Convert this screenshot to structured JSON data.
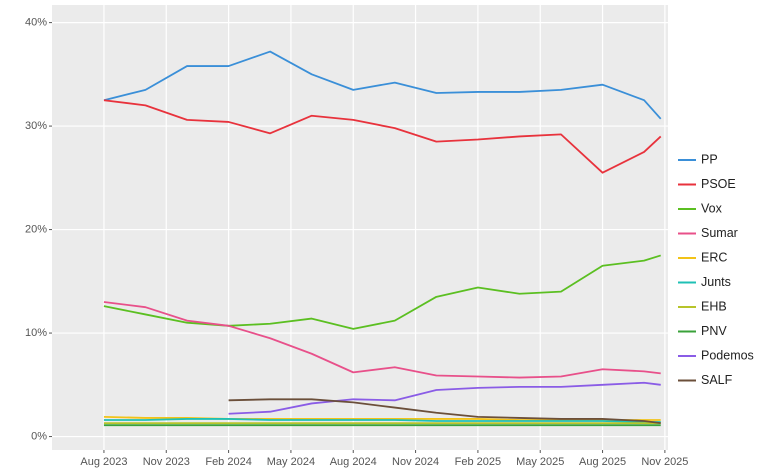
{
  "chart_data": {
    "type": "line",
    "x": [
      0,
      2,
      4,
      6,
      8,
      10,
      12,
      14,
      16,
      18,
      20,
      22,
      24,
      26,
      26.8
    ],
    "xlim": [
      -2.5,
      27.15
    ],
    "xticks": [
      {
        "value": 0,
        "label": "Aug 2023"
      },
      {
        "value": 3,
        "label": "Nov 2023"
      },
      {
        "value": 6,
        "label": "Feb 2024"
      },
      {
        "value": 9,
        "label": "May 2024"
      },
      {
        "value": 12,
        "label": "Aug 2024"
      },
      {
        "value": 15,
        "label": "Nov 2024"
      },
      {
        "value": 18,
        "label": "Feb 2025"
      },
      {
        "value": 21,
        "label": "May 2025"
      },
      {
        "value": 24,
        "label": "Aug 2025"
      },
      {
        "value": 27,
        "label": "Nov 2025"
      }
    ],
    "ylim": [
      -1.3,
      41.7
    ],
    "yticks": [
      {
        "value": 0,
        "label": "0%"
      },
      {
        "value": 10,
        "label": "10%"
      },
      {
        "value": 20,
        "label": "20%"
      },
      {
        "value": 30,
        "label": "30%"
      },
      {
        "value": 40,
        "label": "40%"
      }
    ],
    "grid": true,
    "legend": "right",
    "series": [
      {
        "name": "PP",
        "color": "#3a8fd8",
        "values": [
          32.5,
          33.5,
          35.8,
          35.8,
          37.2,
          35,
          33.5,
          34.2,
          33.2,
          33.3,
          33.3,
          33.5,
          34,
          32.5,
          30.7
        ]
      },
      {
        "name": "PSOE",
        "color": "#e8323c",
        "values": [
          32.5,
          32,
          30.6,
          30.4,
          29.3,
          31,
          30.6,
          29.8,
          28.5,
          28.7,
          29,
          29.2,
          25.5,
          27.5,
          29
        ]
      },
      {
        "name": "Vox",
        "color": "#5bbf21",
        "values": [
          12.6,
          11.8,
          11,
          10.7,
          10.9,
          11.4,
          10.4,
          11.2,
          13.5,
          14.4,
          13.8,
          14,
          16.5,
          17,
          17.5
        ]
      },
      {
        "name": "Sumar",
        "color": "#e8508a",
        "values": [
          13,
          12.5,
          11.2,
          10.7,
          9.5,
          8,
          6.2,
          6.7,
          5.9,
          5.8,
          5.7,
          5.8,
          6.5,
          6.3,
          6.1
        ]
      },
      {
        "name": "ERC",
        "color": "#f2c318",
        "values": [
          1.9,
          1.8,
          1.8,
          1.7,
          1.7,
          1.7,
          1.7,
          1.7,
          1.7,
          1.7,
          1.6,
          1.6,
          1.6,
          1.6,
          1.6
        ]
      },
      {
        "name": "Junts",
        "color": "#1fc0b5",
        "values": [
          1.6,
          1.6,
          1.7,
          1.7,
          1.6,
          1.6,
          1.6,
          1.6,
          1.5,
          1.5,
          1.5,
          1.5,
          1.5,
          1.4,
          1.4
        ]
      },
      {
        "name": "EHB",
        "color": "#b7c42a",
        "values": [
          1.3,
          1.3,
          1.3,
          1.3,
          1.3,
          1.3,
          1.3,
          1.3,
          1.3,
          1.3,
          1.3,
          1.3,
          1.3,
          1.3,
          1.3
        ]
      },
      {
        "name": "PNV",
        "color": "#3aa23a",
        "values": [
          1.1,
          1.1,
          1.1,
          1.1,
          1.1,
          1.1,
          1.1,
          1.1,
          1.1,
          1.1,
          1.1,
          1.1,
          1.1,
          1.1,
          1.1
        ]
      },
      {
        "name": "Podemos",
        "color": "#8a5ce6",
        "values": [
          null,
          null,
          null,
          2.2,
          2.4,
          3.2,
          3.6,
          3.5,
          4.5,
          4.7,
          4.8,
          4.8,
          5,
          5.2,
          5
        ]
      },
      {
        "name": "SALF",
        "color": "#6b4f3a",
        "values": [
          null,
          null,
          null,
          3.5,
          3.6,
          3.6,
          3.3,
          2.8,
          2.3,
          1.9,
          1.8,
          1.7,
          1.7,
          1.5,
          1.3
        ]
      }
    ]
  }
}
